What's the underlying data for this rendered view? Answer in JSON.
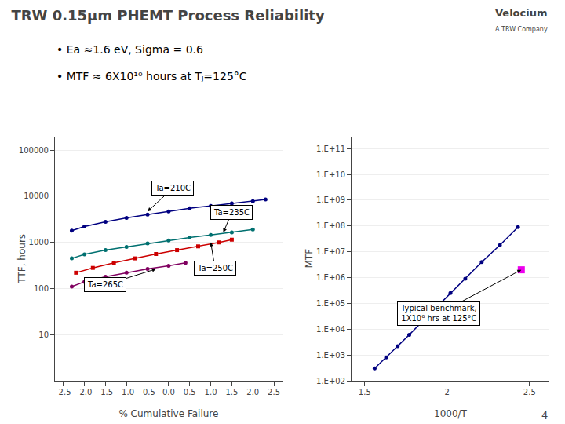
{
  "title": "TRW 0.15μm PHEMT Process Reliability",
  "subtitle": [
    "• Ea ≈1.6 eV, Sigma = 0.6",
    "• MTF ≈ 6X10¹⁰ hours at Tⱼ=125°C"
  ],
  "annotations": [
    "Velocium",
    "A TRW Company",
    "4"
  ],
  "chart_data": [
    {
      "type": "line",
      "x_label": "% Cumulative Failure",
      "y_label": "TTF, hours",
      "log": "y",
      "grid": "y",
      "xlim": [
        -2.7,
        2.7
      ],
      "ylim": [
        1,
        200000
      ],
      "xticks": [
        -2.5,
        {
          "value": -2.0,
          "label": "-2.0"
        },
        -1.5,
        {
          "value": -1.0,
          "label": "-1.0"
        },
        -0.5,
        {
          "value": 0.0,
          "label": "0.0"
        },
        0.5,
        {
          "value": 1.0,
          "label": "1.0"
        },
        1.5,
        {
          "value": 2.0,
          "label": "2.0"
        },
        2.5
      ],
      "yticks": [
        10,
        100,
        1000,
        10000,
        100000
      ],
      "series": [
        {
          "name": "Ta=210C",
          "color": "#000080",
          "marker": "circle",
          "x": [
            -2.3,
            -2.0,
            -1.5,
            -1.0,
            -0.5,
            0.0,
            0.5,
            1.0,
            1.5,
            2.0,
            2.3
          ],
          "values": [
            1800,
            2200,
            2800,
            3400,
            4000,
            4700,
            5500,
            6200,
            7000,
            7800,
            8500
          ]
        },
        {
          "name": "Ta=235C",
          "color": "#007070",
          "marker": "circle",
          "x": [
            -2.3,
            -2.0,
            -1.5,
            -1.0,
            -0.5,
            0.0,
            0.5,
            1.0,
            1.5,
            2.0
          ],
          "values": [
            450,
            550,
            680,
            800,
            950,
            1100,
            1280,
            1450,
            1650,
            1900
          ]
        },
        {
          "name": "Ta=250C",
          "color": "#cc0000",
          "marker": "square",
          "x": [
            -2.2,
            -1.8,
            -1.3,
            -0.8,
            -0.3,
            0.2,
            0.7,
            1.2,
            1.5
          ],
          "values": [
            220,
            280,
            360,
            450,
            560,
            680,
            820,
            1000,
            1150
          ]
        },
        {
          "name": "Ta=265C",
          "color": "#800060",
          "marker": "circle",
          "x": [
            -2.3,
            -2.0,
            -1.5,
            -1.0,
            -0.5,
            0.0,
            0.4
          ],
          "values": [
            110,
            140,
            180,
            220,
            265,
            310,
            360
          ]
        }
      ],
      "annotations": [
        {
          "text": "Ta=210C",
          "x": -0.5,
          "y": 4700,
          "text_x": 0.1,
          "text_y": 15000
        },
        {
          "text": "Ta=235C",
          "x": 1.3,
          "y": 1650,
          "text_x": 1.5,
          "text_y": 4500
        },
        {
          "text": "Ta=250C",
          "x": 1.0,
          "y": 1000,
          "text_x": 1.1,
          "text_y": 280
        },
        {
          "text": "Ta=265C",
          "x": -0.3,
          "y": 265,
          "text_x": -1.5,
          "text_y": 120
        }
      ]
    },
    {
      "type": "line",
      "x_label": "1000/T",
      "y_label": "MTF",
      "log": "y",
      "grid": "y",
      "xlim": [
        1.42,
        2.62
      ],
      "ylim": [
        100,
        300000000000
      ],
      "xticks": [
        1.5,
        2,
        2.5
      ],
      "yticks": [
        {
          "value": 100,
          "label": "1.E+02"
        },
        {
          "value": 1000,
          "label": "1.E+03"
        },
        {
          "value": 10000,
          "label": "1.E+04"
        },
        {
          "value": 100000,
          "label": "1.E+05"
        },
        {
          "value": 1000000,
          "label": "1.E+06"
        },
        {
          "value": 10000000,
          "label": "1.E+07"
        },
        {
          "value": 100000000,
          "label": "1.E+08"
        },
        {
          "value": 1000000000,
          "label": "1.E+09"
        },
        {
          "value": 10000000000,
          "label": "1.E+10"
        },
        {
          "value": 100000000000,
          "label": "1.E+11"
        }
      ],
      "series": [
        {
          "color": "#000080",
          "marker": "circle",
          "x": [
            1.56,
            1.63,
            1.7,
            1.77,
            1.85,
            1.93,
            2.02,
            2.11,
            2.21,
            2.32,
            2.43
          ],
          "values": [
            300,
            800,
            2200,
            6000,
            20000,
            65000,
            250000,
            900000,
            4000000,
            18000000,
            90000000
          ]
        },
        {
          "type": "scatter",
          "color": "#ee00ee",
          "marker": "square",
          "x": [
            2.45
          ],
          "values": [
            2000000
          ]
        }
      ],
      "annotations": [
        {
          "text": "Typical benchmark,\n1X10⁶ hrs at 125°C",
          "x": 2.45,
          "y": 2000000,
          "text_x": 1.95,
          "text_y": 40000
        }
      ]
    }
  ]
}
